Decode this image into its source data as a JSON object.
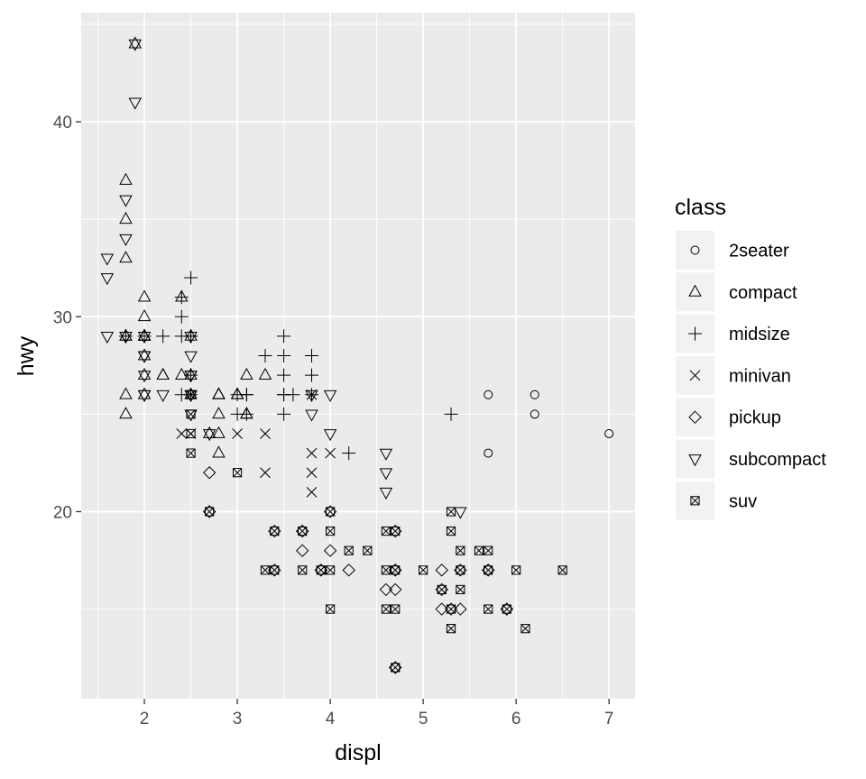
{
  "chart_data": {
    "type": "scatter",
    "xlabel": "displ",
    "ylabel": "hwy",
    "xlim": [
      1.32,
      7.28
    ],
    "ylim": [
      10.4,
      45.6
    ],
    "x_ticks": [
      2,
      3,
      4,
      5,
      6,
      7
    ],
    "y_ticks": [
      20,
      30,
      40
    ],
    "grid": true,
    "legend": {
      "title": "class",
      "position": "right"
    },
    "background": "#EBEBEB",
    "grid_color": "#FFFFFF",
    "point_color": "#000000",
    "series": [
      {
        "name": "2seater",
        "shape": "circle",
        "points": [
          [
            5.7,
            26
          ],
          [
            5.7,
            23
          ],
          [
            6.2,
            26
          ],
          [
            6.2,
            25
          ],
          [
            7.0,
            24
          ]
        ]
      },
      {
        "name": "compact",
        "shape": "triangle-up",
        "points": [
          [
            1.8,
            29
          ],
          [
            1.8,
            29
          ],
          [
            2.0,
            31
          ],
          [
            2.0,
            30
          ],
          [
            2.8,
            26
          ],
          [
            2.8,
            26
          ],
          [
            3.1,
            27
          ],
          [
            1.8,
            26
          ],
          [
            1.8,
            25
          ],
          [
            2.0,
            28
          ],
          [
            2.0,
            29
          ],
          [
            2.8,
            26
          ],
          [
            2.8,
            25
          ],
          [
            3.1,
            25
          ],
          [
            3.1,
            25
          ],
          [
            1.8,
            37
          ],
          [
            1.8,
            35
          ],
          [
            1.8,
            33
          ],
          [
            1.9,
            44
          ],
          [
            2.0,
            29
          ],
          [
            2.0,
            26
          ],
          [
            2.0,
            29
          ],
          [
            2.0,
            29
          ],
          [
            2.2,
            27
          ],
          [
            2.4,
            27
          ],
          [
            2.4,
            31
          ],
          [
            2.5,
            27
          ],
          [
            2.5,
            29
          ],
          [
            2.7,
            24
          ],
          [
            2.8,
            24
          ],
          [
            2.8,
            23
          ],
          [
            3.0,
            26
          ],
          [
            3.3,
            27
          ],
          [
            2.0,
            27
          ],
          [
            2.2,
            27
          ],
          [
            2.5,
            26
          ],
          [
            3.0,
            26
          ]
        ]
      },
      {
        "name": "midsize",
        "shape": "plus",
        "points": [
          [
            2.4,
            30
          ],
          [
            2.4,
            31
          ],
          [
            2.5,
            29
          ],
          [
            2.5,
            32
          ],
          [
            3.1,
            26
          ],
          [
            3.5,
            29
          ],
          [
            3.5,
            28
          ],
          [
            3.8,
            28
          ],
          [
            3.8,
            27
          ],
          [
            3.5,
            26
          ],
          [
            3.5,
            25
          ],
          [
            3.3,
            28
          ],
          [
            3.6,
            26
          ],
          [
            3.8,
            26
          ],
          [
            3.0,
            25
          ],
          [
            3.1,
            26
          ],
          [
            3.5,
            27
          ],
          [
            4.2,
            23
          ],
          [
            5.3,
            25
          ],
          [
            2.4,
            26
          ],
          [
            2.5,
            26
          ],
          [
            3.0,
            26
          ],
          [
            3.1,
            25
          ],
          [
            2.5,
            29
          ],
          [
            3.5,
            26
          ],
          [
            2.4,
            29
          ],
          [
            2.2,
            29
          ],
          [
            2.0,
            29
          ],
          [
            1.8,
            29
          ],
          [
            2.5,
            27
          ]
        ]
      },
      {
        "name": "minivan",
        "shape": "cross",
        "points": [
          [
            2.4,
            24
          ],
          [
            3.0,
            24
          ],
          [
            3.3,
            22
          ],
          [
            3.3,
            24
          ],
          [
            3.8,
            23
          ],
          [
            3.8,
            22
          ],
          [
            3.8,
            21
          ],
          [
            4.0,
            23
          ],
          [
            3.8,
            26
          ],
          [
            2.5,
            24
          ]
        ]
      },
      {
        "name": "pickup",
        "shape": "diamond",
        "points": [
          [
            2.7,
            20
          ],
          [
            2.7,
            22
          ],
          [
            2.7,
            20
          ],
          [
            3.4,
            19
          ],
          [
            3.4,
            17
          ],
          [
            3.7,
            18
          ],
          [
            3.7,
            19
          ],
          [
            3.9,
            17
          ],
          [
            4.0,
            18
          ],
          [
            4.2,
            17
          ],
          [
            4.7,
            19
          ],
          [
            4.7,
            16
          ],
          [
            4.6,
            16
          ],
          [
            4.7,
            17
          ],
          [
            5.2,
            17
          ],
          [
            5.2,
            15
          ],
          [
            5.4,
            15
          ],
          [
            5.7,
            17
          ],
          [
            5.9,
            15
          ],
          [
            4.0,
            20
          ],
          [
            4.7,
            12
          ],
          [
            5.3,
            15
          ],
          [
            5.4,
            17
          ],
          [
            4.7,
            17
          ],
          [
            3.7,
            19
          ],
          [
            3.9,
            17
          ],
          [
            4.7,
            12
          ],
          [
            5.2,
            16
          ],
          [
            5.7,
            17
          ],
          [
            5.9,
            15
          ]
        ]
      },
      {
        "name": "subcompact",
        "shape": "triangle-down",
        "points": [
          [
            1.6,
            33
          ],
          [
            1.6,
            32
          ],
          [
            1.6,
            29
          ],
          [
            1.8,
            36
          ],
          [
            1.8,
            34
          ],
          [
            1.8,
            29
          ],
          [
            1.9,
            41
          ],
          [
            1.9,
            44
          ],
          [
            2.0,
            29
          ],
          [
            2.0,
            26
          ],
          [
            2.0,
            27
          ],
          [
            2.0,
            28
          ],
          [
            2.2,
            26
          ],
          [
            2.5,
            28
          ],
          [
            2.5,
            29
          ],
          [
            2.5,
            27
          ],
          [
            2.5,
            26
          ],
          [
            2.5,
            25
          ],
          [
            2.7,
            24
          ],
          [
            3.8,
            26
          ],
          [
            3.8,
            25
          ],
          [
            4.0,
            26
          ],
          [
            4.0,
            24
          ],
          [
            4.6,
            23
          ],
          [
            4.6,
            22
          ],
          [
            4.6,
            21
          ],
          [
            5.4,
            20
          ],
          [
            2.0,
            28
          ],
          [
            2.5,
            26
          ],
          [
            1.8,
            29
          ],
          [
            2.0,
            26
          ],
          [
            2.5,
            27
          ]
        ]
      },
      {
        "name": "suv",
        "shape": "square-cross",
        "points": [
          [
            2.5,
            23
          ],
          [
            2.5,
            24
          ],
          [
            2.5,
            25
          ],
          [
            2.5,
            26
          ],
          [
            2.7,
            20
          ],
          [
            3.0,
            22
          ],
          [
            3.3,
            17
          ],
          [
            3.4,
            17
          ],
          [
            3.4,
            19
          ],
          [
            3.7,
            19
          ],
          [
            3.7,
            17
          ],
          [
            3.9,
            17
          ],
          [
            4.0,
            20
          ],
          [
            4.0,
            19
          ],
          [
            4.0,
            17
          ],
          [
            4.0,
            15
          ],
          [
            4.2,
            18
          ],
          [
            4.4,
            18
          ],
          [
            4.6,
            19
          ],
          [
            4.6,
            17
          ],
          [
            4.6,
            15
          ],
          [
            4.7,
            19
          ],
          [
            4.7,
            17
          ],
          [
            4.7,
            15
          ],
          [
            4.7,
            12
          ],
          [
            5.0,
            17
          ],
          [
            5.2,
            16
          ],
          [
            5.3,
            20
          ],
          [
            5.3,
            19
          ],
          [
            5.3,
            15
          ],
          [
            5.3,
            14
          ],
          [
            5.4,
            18
          ],
          [
            5.4,
            17
          ],
          [
            5.4,
            16
          ],
          [
            5.6,
            18
          ],
          [
            5.7,
            18
          ],
          [
            5.7,
            17
          ],
          [
            5.7,
            15
          ],
          [
            6.0,
            17
          ],
          [
            6.1,
            14
          ],
          [
            6.5,
            17
          ],
          [
            5.9,
            15
          ]
        ]
      }
    ]
  }
}
